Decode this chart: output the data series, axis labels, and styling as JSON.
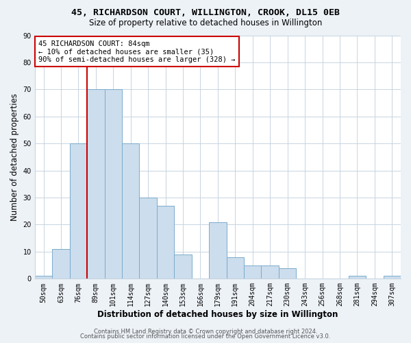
{
  "title": "45, RICHARDSON COURT, WILLINGTON, CROOK, DL15 0EB",
  "subtitle": "Size of property relative to detached houses in Willington",
  "xlabel": "Distribution of detached houses by size in Willington",
  "ylabel": "Number of detached properties",
  "bin_labels": [
    "50sqm",
    "63sqm",
    "76sqm",
    "89sqm",
    "101sqm",
    "114sqm",
    "127sqm",
    "140sqm",
    "153sqm",
    "166sqm",
    "179sqm",
    "191sqm",
    "204sqm",
    "217sqm",
    "230sqm",
    "243sqm",
    "256sqm",
    "268sqm",
    "281sqm",
    "294sqm",
    "307sqm"
  ],
  "bar_values": [
    1,
    11,
    50,
    70,
    70,
    50,
    30,
    27,
    9,
    0,
    21,
    8,
    5,
    5,
    4,
    0,
    0,
    0,
    1,
    0,
    1
  ],
  "bar_color": "#ccdded",
  "bar_edgecolor": "#7aabcc",
  "vline_pos": 3.0,
  "vline_color": "#cc0000",
  "annotation_text": "45 RICHARDSON COURT: 84sqm\n← 10% of detached houses are smaller (35)\n90% of semi-detached houses are larger (328) →",
  "annotation_box_edgecolor": "#cc0000",
  "ylim": [
    0,
    90
  ],
  "yticks": [
    0,
    10,
    20,
    30,
    40,
    50,
    60,
    70,
    80,
    90
  ],
  "footer1": "Contains HM Land Registry data © Crown copyright and database right 2024.",
  "footer2": "Contains public sector information licensed under the Open Government Licence v3.0.",
  "bg_color": "#edf2f7",
  "plot_bg_color": "#ffffff",
  "grid_color": "#c8d4e0",
  "title_fontsize": 9.5,
  "subtitle_fontsize": 8.5,
  "tick_fontsize": 7,
  "label_fontsize": 8.5,
  "annot_fontsize": 7.5,
  "footer_fontsize": 6
}
